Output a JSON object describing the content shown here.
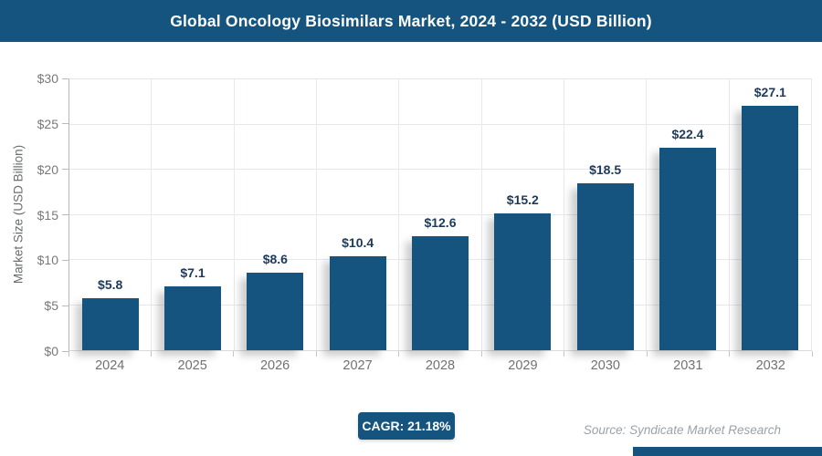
{
  "header": {
    "title": "Global Oncology Biosimilars Market, 2024 - 2032 (USD Billion)"
  },
  "chart_data": {
    "type": "bar",
    "title": "Global Oncology Biosimilars Market, 2024 - 2032 (USD Billion)",
    "categories": [
      "2024",
      "2025",
      "2026",
      "2027",
      "2028",
      "2029",
      "2030",
      "2031",
      "2032"
    ],
    "values": [
      5.8,
      7.1,
      8.6,
      10.4,
      12.6,
      15.2,
      18.5,
      22.4,
      27.1
    ],
    "value_labels": [
      "$5.8",
      "$7.1",
      "$8.6",
      "$10.4",
      "$12.6",
      "$15.2",
      "$18.5",
      "$22.4",
      "$27.1"
    ],
    "xlabel": "",
    "ylabel": "Market Size (USD Billion)",
    "ylim": [
      0,
      30
    ],
    "ytick_step": 5,
    "ytick_labels_top_to_bottom": [
      "$30",
      "$25",
      "$20",
      "$15",
      "$10",
      "$5",
      "$0"
    ],
    "grid": true,
    "legend": false,
    "bar_color": "#15547E"
  },
  "footer": {
    "cagr_badge": "CAGR: 21.18%",
    "source": "Source: Syndicate Market Research"
  },
  "colors": {
    "brand_navy": "#15547E",
    "value_label_navy": "#1E3A5A",
    "axis_text_gray": "#77797B",
    "grid_line": "#E5E7EA",
    "source_gray": "#9AA2A8"
  }
}
